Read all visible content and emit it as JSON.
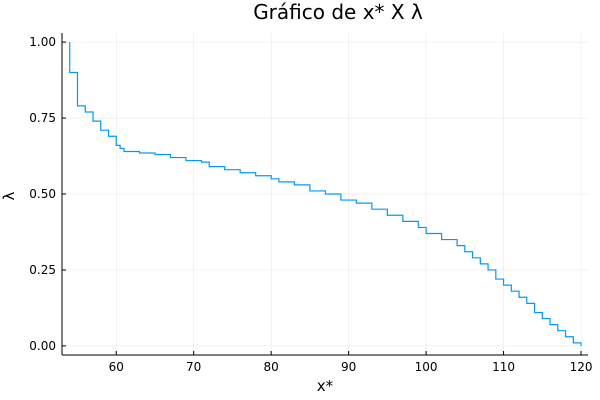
{
  "chart_data": {
    "type": "line",
    "title": "Gráfico de x* X λ",
    "xlabel": "x*",
    "ylabel": "λ",
    "xlim": [
      53.0,
      120.9
    ],
    "ylim": [
      -0.03,
      1.03
    ],
    "xticks": [
      60,
      70,
      80,
      90,
      100,
      110,
      120
    ],
    "yticks": [
      0.0,
      0.25,
      0.5,
      0.75,
      1.0
    ],
    "xtick_labels": [
      "60",
      "70",
      "80",
      "90",
      "100",
      "110",
      "120"
    ],
    "ytick_labels": [
      "0.00",
      "0.25",
      "0.50",
      "0.75",
      "1.00"
    ],
    "grid": true,
    "legend": "none",
    "line_style": "steps-post",
    "series": [
      {
        "color": "#009af9",
        "x": [
          54.0,
          54.0,
          55.0,
          55.0,
          56.0,
          57.0,
          58.0,
          59.0,
          60.0,
          60.5,
          61.0,
          63.0,
          65.0,
          67.0,
          69.0,
          71.0,
          72.0,
          74.0,
          76.0,
          78.0,
          80.0,
          81.0,
          83.0,
          85.0,
          87.0,
          89.0,
          91.0,
          93.0,
          95.0,
          97.0,
          99.0,
          100.0,
          102.0,
          104.0,
          105.0,
          106.0,
          107.0,
          108.0,
          109.0,
          110.0,
          111.0,
          112.0,
          113.0,
          114.0,
          115.0,
          116.0,
          117.0,
          118.0,
          119.0,
          120.0
        ],
        "y": [
          1.0,
          0.9,
          0.89,
          0.79,
          0.77,
          0.74,
          0.71,
          0.69,
          0.66,
          0.65,
          0.64,
          0.635,
          0.63,
          0.62,
          0.61,
          0.605,
          0.59,
          0.58,
          0.57,
          0.56,
          0.55,
          0.54,
          0.53,
          0.51,
          0.5,
          0.48,
          0.47,
          0.45,
          0.43,
          0.41,
          0.39,
          0.37,
          0.35,
          0.33,
          0.31,
          0.29,
          0.27,
          0.25,
          0.22,
          0.2,
          0.18,
          0.16,
          0.14,
          0.11,
          0.09,
          0.07,
          0.05,
          0.03,
          0.01,
          0.0
        ]
      }
    ]
  }
}
